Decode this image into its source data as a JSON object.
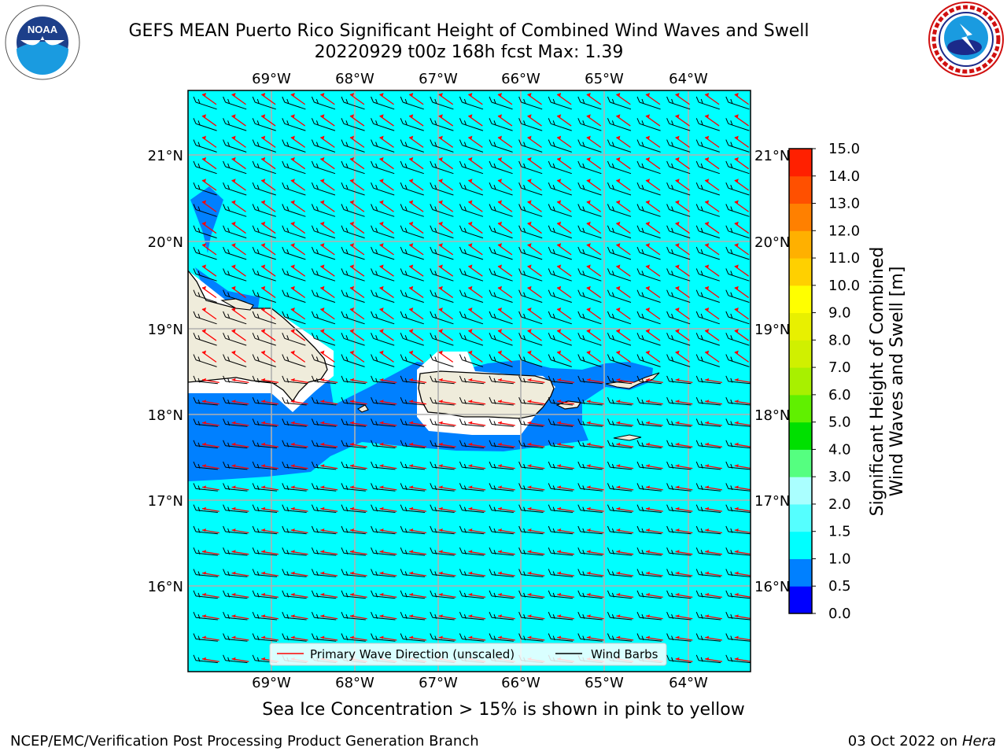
{
  "header": {
    "title_line1": "GEFS MEAN Puerto Rico Significant Height of Combined Wind Waves and Swell",
    "title_line2": "20220929 t00z 168h fcst   Max: 1.39"
  },
  "logos": {
    "left": "noaa-logo-icon",
    "right": "nws-logo-icon"
  },
  "map": {
    "lon_ticks": [
      "69°W",
      "68°W",
      "67°W",
      "66°W",
      "65°W",
      "64°W"
    ],
    "lat_ticks": [
      "21°N",
      "20°N",
      "19°N",
      "18°N",
      "17°N",
      "16°N"
    ],
    "legend": {
      "wave_dir": "Primary Wave Direction (unscaled)",
      "wind_barbs": "Wind Barbs"
    },
    "colors": {
      "ocean": "#00ffff",
      "band": "#0080ff",
      "land": "#efecdb",
      "arrow": "#ff0000",
      "barb": "#000000"
    }
  },
  "colorbar": {
    "title_line1": "Significant Height of Combined",
    "title_line2": "Wind Waves and Swell [m]",
    "tick_labels": [
      "0.0",
      "0.5",
      "1.0",
      "1.5",
      "2.0",
      "3.0",
      "4.0",
      "5.0",
      "6.0",
      "7.0",
      "8.0",
      "9.0",
      "10.0",
      "11.0",
      "12.0",
      "13.0",
      "14.0",
      "15.0"
    ],
    "colors": [
      "#0000ff",
      "#0080ff",
      "#00ffff",
      "#55ffff",
      "#aaffff",
      "#55ff80",
      "#00e000",
      "#60f000",
      "#a8f000",
      "#d0f000",
      "#e8f000",
      "#ffff00",
      "#ffd000",
      "#ffb000",
      "#ff8000",
      "#ff5000",
      "#ff2000"
    ]
  },
  "footer": {
    "note": "Sea Ice Concentration > 15% is shown in pink to yellow",
    "credit": "NCEP/EMC/Verification Post Processing Product Generation Branch",
    "date": "03 Oct 2022 on ",
    "machine": "Hera"
  }
}
